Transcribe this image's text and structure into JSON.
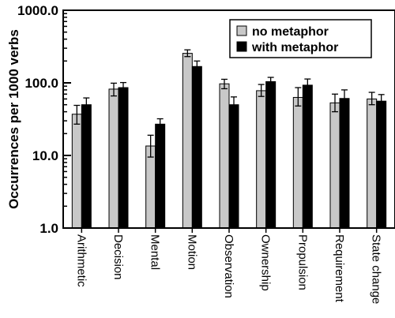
{
  "chart_data": {
    "type": "bar",
    "scale": "log",
    "title": "",
    "xlabel": "",
    "ylabel": "Occurrences per 1000 verbs",
    "ylim": [
      1.0,
      1000.0
    ],
    "yticks": [
      1.0,
      10.0,
      100.0,
      1000.0
    ],
    "ytick_labels": [
      "1.0",
      "10.0",
      "100.0",
      "1000.0"
    ],
    "grid": false,
    "legend_position": "top-right",
    "categories": [
      "Arithmetic",
      "Decision",
      "Mental",
      "Motion",
      "Observation",
      "Ownership",
      "Propulsion",
      "Requirement",
      "State change"
    ],
    "series": [
      {
        "name": "no metaphor",
        "color": "#c8c8c8",
        "values": [
          37,
          82,
          13.5,
          255,
          97,
          78,
          63,
          53,
          60
        ],
        "error_low": [
          27,
          66,
          9.5,
          230,
          83,
          65,
          48,
          40,
          50
        ],
        "error_high": [
          49,
          99,
          19,
          285,
          112,
          95,
          86,
          70,
          74
        ]
      },
      {
        "name": "with metaphor",
        "color": "#000000",
        "values": [
          50,
          86,
          27,
          168,
          50,
          104,
          93,
          61,
          56
        ],
        "error_low": [
          41,
          72,
          23,
          140,
          38,
          92,
          75,
          47,
          46
        ],
        "error_high": [
          62,
          101,
          32,
          200,
          64,
          119,
          113,
          80,
          69
        ]
      }
    ]
  }
}
